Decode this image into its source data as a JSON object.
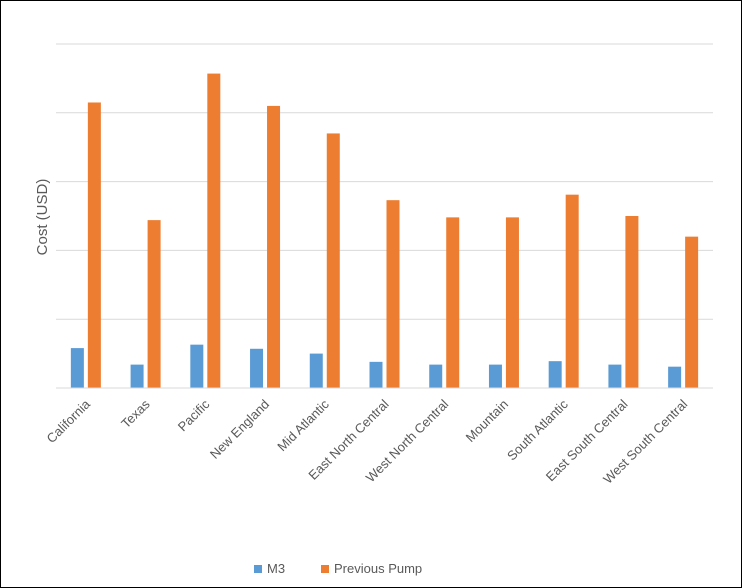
{
  "chart_data": {
    "type": "bar",
    "ylabel": "Cost (USD)",
    "categories": [
      "California",
      "Texas",
      "Pacific",
      "New England",
      "Mid Atlantic",
      "East North Central",
      "West North Central",
      "Mountain",
      "South Atlantic",
      "East South Central",
      "West South Central"
    ],
    "series": [
      {
        "name": "M3",
        "color": "#5b9bd5",
        "values": [
          0.58,
          0.34,
          0.63,
          0.57,
          0.5,
          0.38,
          0.34,
          0.34,
          0.39,
          0.34,
          0.31
        ]
      },
      {
        "name": "Previous Pump",
        "color": "#ed7d31",
        "values": [
          4.15,
          2.44,
          4.57,
          4.1,
          3.7,
          2.73,
          2.48,
          2.48,
          2.81,
          2.5,
          2.2
        ]
      }
    ],
    "ylim": [
      0,
      5
    ],
    "gridlines": [
      1,
      2,
      3,
      4,
      5
    ],
    "grid": true,
    "y_tick_labels_shown": false,
    "legend_position": "bottom"
  }
}
